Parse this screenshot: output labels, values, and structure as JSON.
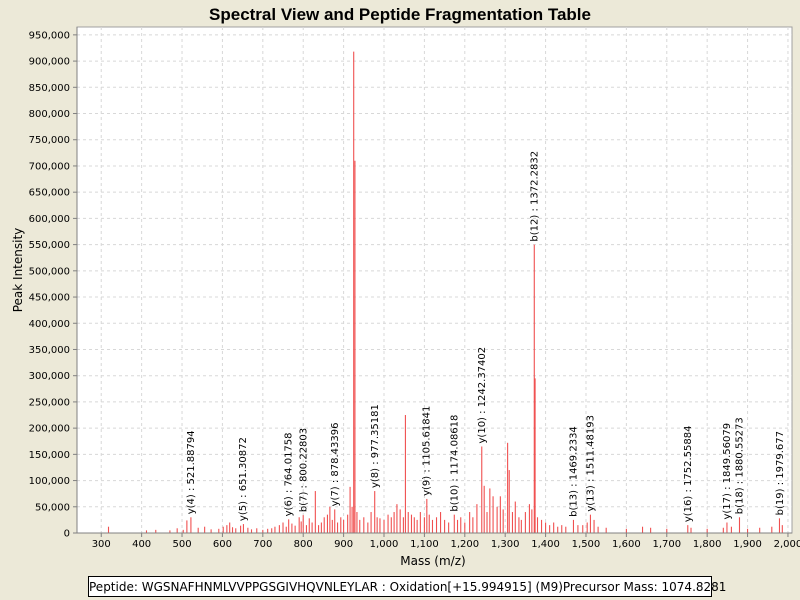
{
  "chart_data": {
    "type": "bar",
    "title": "Spectral View and Peptide Fragmentation Table",
    "xlabel": "Mass (m/z)",
    "ylabel": "Peak Intensity",
    "xlim": [
      240,
      2010
    ],
    "ylim": [
      0,
      965000
    ],
    "xticks": [
      300,
      400,
      500,
      600,
      700,
      800,
      900,
      1000,
      1100,
      1200,
      1300,
      1400,
      1500,
      1600,
      1700,
      1800,
      1900,
      2000
    ],
    "xtick_labels": [
      "300",
      "400",
      "500",
      "600",
      "700",
      "800",
      "900",
      "1,000",
      "1,100",
      "1,200",
      "1,300",
      "1,400",
      "1,500",
      "1,600",
      "1,700",
      "1,800",
      "1,900",
      "2,000"
    ],
    "yticks": [
      0,
      50000,
      100000,
      150000,
      200000,
      250000,
      300000,
      350000,
      400000,
      450000,
      500000,
      550000,
      600000,
      650000,
      700000,
      750000,
      800000,
      850000,
      900000,
      950000
    ],
    "ytick_labels": [
      "0",
      "50,000",
      "100,000",
      "150,000",
      "200,000",
      "250,000",
      "300,000",
      "350,000",
      "400,000",
      "450,000",
      "500,000",
      "550,000",
      "600,000",
      "650,000",
      "700,000",
      "750,000",
      "800,000",
      "850,000",
      "900,000",
      "950,000"
    ],
    "grid": true,
    "colors": {
      "peak": "#F05050",
      "grid": "#D8D8D8",
      "background": "#ECE9D8",
      "plot": "#FFFFFF"
    },
    "peaks": [
      [
        318,
        12000
      ],
      [
        412,
        5000
      ],
      [
        435,
        6000
      ],
      [
        470,
        5000
      ],
      [
        488,
        9000
      ],
      [
        503,
        6000
      ],
      [
        512,
        24000
      ],
      [
        522,
        30000
      ],
      [
        540,
        10000
      ],
      [
        556,
        12000
      ],
      [
        572,
        7000
      ],
      [
        591,
        8000
      ],
      [
        602,
        12000
      ],
      [
        611,
        15000
      ],
      [
        618,
        20000
      ],
      [
        625,
        11000
      ],
      [
        633,
        9000
      ],
      [
        645,
        14000
      ],
      [
        652,
        17000
      ],
      [
        663,
        10000
      ],
      [
        672,
        7000
      ],
      [
        685,
        9000
      ],
      [
        700,
        6000
      ],
      [
        712,
        8000
      ],
      [
        722,
        9000
      ],
      [
        730,
        12000
      ],
      [
        741,
        15000
      ],
      [
        750,
        20000
      ],
      [
        758,
        12000
      ],
      [
        764,
        26000
      ],
      [
        772,
        18000
      ],
      [
        780,
        14000
      ],
      [
        790,
        30000
      ],
      [
        795,
        22000
      ],
      [
        800,
        34000
      ],
      [
        808,
        15000
      ],
      [
        815,
        28000
      ],
      [
        822,
        20000
      ],
      [
        830,
        80000
      ],
      [
        838,
        15000
      ],
      [
        845,
        20000
      ],
      [
        852,
        30000
      ],
      [
        860,
        35000
      ],
      [
        866,
        50000
      ],
      [
        872,
        25000
      ],
      [
        878,
        45000
      ],
      [
        885,
        20000
      ],
      [
        893,
        30000
      ],
      [
        900,
        25000
      ],
      [
        910,
        35000
      ],
      [
        916,
        88000
      ],
      [
        921,
        50000
      ],
      [
        925,
        918000
      ],
      [
        928,
        710000
      ],
      [
        933,
        40000
      ],
      [
        940,
        25000
      ],
      [
        950,
        30000
      ],
      [
        960,
        20000
      ],
      [
        968,
        40000
      ],
      [
        977,
        80000
      ],
      [
        983,
        30000
      ],
      [
        990,
        28000
      ],
      [
        1000,
        25000
      ],
      [
        1010,
        35000
      ],
      [
        1018,
        30000
      ],
      [
        1025,
        40000
      ],
      [
        1032,
        55000
      ],
      [
        1040,
        45000
      ],
      [
        1048,
        30000
      ],
      [
        1053,
        225000
      ],
      [
        1060,
        40000
      ],
      [
        1068,
        35000
      ],
      [
        1075,
        30000
      ],
      [
        1082,
        25000
      ],
      [
        1090,
        40000
      ],
      [
        1100,
        30000
      ],
      [
        1106,
        65000
      ],
      [
        1112,
        35000
      ],
      [
        1120,
        25000
      ],
      [
        1130,
        30000
      ],
      [
        1140,
        40000
      ],
      [
        1150,
        25000
      ],
      [
        1160,
        20000
      ],
      [
        1174,
        35000
      ],
      [
        1182,
        25000
      ],
      [
        1190,
        30000
      ],
      [
        1200,
        20000
      ],
      [
        1212,
        40000
      ],
      [
        1220,
        30000
      ],
      [
        1230,
        55000
      ],
      [
        1242,
        165000
      ],
      [
        1248,
        90000
      ],
      [
        1255,
        40000
      ],
      [
        1262,
        85000
      ],
      [
        1270,
        70000
      ],
      [
        1280,
        50000
      ],
      [
        1288,
        70000
      ],
      [
        1295,
        45000
      ],
      [
        1306,
        172000
      ],
      [
        1310,
        120000
      ],
      [
        1318,
        40000
      ],
      [
        1325,
        60000
      ],
      [
        1334,
        30000
      ],
      [
        1340,
        25000
      ],
      [
        1350,
        40000
      ],
      [
        1360,
        55000
      ],
      [
        1366,
        45000
      ],
      [
        1372,
        550000
      ],
      [
        1374,
        295000
      ],
      [
        1380,
        30000
      ],
      [
        1390,
        25000
      ],
      [
        1400,
        20000
      ],
      [
        1410,
        15000
      ],
      [
        1420,
        20000
      ],
      [
        1430,
        12000
      ],
      [
        1440,
        15000
      ],
      [
        1450,
        12000
      ],
      [
        1469,
        25000
      ],
      [
        1480,
        15000
      ],
      [
        1492,
        15000
      ],
      [
        1503,
        20000
      ],
      [
        1511,
        35000
      ],
      [
        1520,
        25000
      ],
      [
        1530,
        12000
      ],
      [
        1550,
        10000
      ],
      [
        1600,
        8000
      ],
      [
        1640,
        12000
      ],
      [
        1660,
        10000
      ],
      [
        1700,
        8000
      ],
      [
        1752,
        15000
      ],
      [
        1760,
        10000
      ],
      [
        1800,
        8000
      ],
      [
        1840,
        10000
      ],
      [
        1849,
        20000
      ],
      [
        1860,
        12000
      ],
      [
        1880,
        30000
      ],
      [
        1900,
        8000
      ],
      [
        1930,
        10000
      ],
      [
        1960,
        12000
      ],
      [
        1979,
        28000
      ],
      [
        1986,
        15000
      ]
    ],
    "annotations": [
      {
        "label": "y(4) : 521.88794",
        "x": 521.88794,
        "y": 30000
      },
      {
        "label": "y(5) : 651.30872",
        "x": 651.30872,
        "y": 17000
      },
      {
        "label": "y(6) : 764.01758",
        "x": 764.01758,
        "y": 26000
      },
      {
        "label": "b(7) : 800.22803",
        "x": 800.22803,
        "y": 34000
      },
      {
        "label": "y(7) : 878.43396",
        "x": 878.43396,
        "y": 45000
      },
      {
        "label": "y(8) : 977.35181",
        "x": 977.35181,
        "y": 80000
      },
      {
        "label": "y(9) : 1105.61841",
        "x": 1105.61841,
        "y": 65000
      },
      {
        "label": "b(10) : 1174.08618",
        "x": 1174.08618,
        "y": 35000
      },
      {
        "label": "y(10) : 1242.37402",
        "x": 1242.37402,
        "y": 165000
      },
      {
        "label": "b(12) : 1372.2832",
        "x": 1372.2832,
        "y": 550000
      },
      {
        "label": "b(13) : 1469.2334",
        "x": 1469.2334,
        "y": 25000
      },
      {
        "label": "y(13) : 1511.48193",
        "x": 1511.48193,
        "y": 35000
      },
      {
        "label": "y(16) : 1752.55884",
        "x": 1752.55884,
        "y": 15000
      },
      {
        "label": "y(17) : 1849.56079",
        "x": 1849.56079,
        "y": 20000
      },
      {
        "label": "b(18) : 1880.55273",
        "x": 1880.55273,
        "y": 30000
      },
      {
        "label": "b(19) : 1979.677",
        "x": 1979.677,
        "y": 28000
      }
    ]
  },
  "footer": {
    "peptide_text": "Peptide: WGSNAFHNMLVVPPGSGIVHQVNLEYLAR : Oxidation[+15.994915] (M9)",
    "precursor_text": "Precursor Mass: 1074.8281"
  }
}
